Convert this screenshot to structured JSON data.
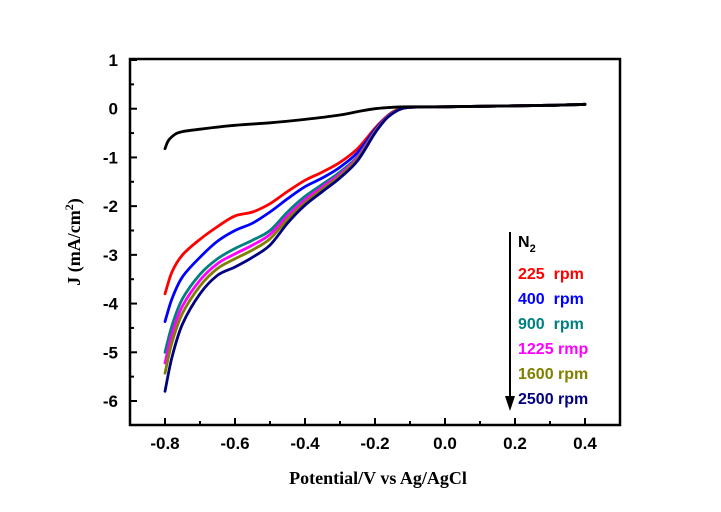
{
  "chart_data": {
    "type": "line",
    "title": "",
    "xlabel": "Potential/V vs Ag/AgCl",
    "ylabel_main": "J (mA/cm",
    "ylabel_sup": "2",
    "ylabel_close": ")",
    "xlim": [
      -0.9,
      0.5
    ],
    "ylim": [
      -6.5,
      1
    ],
    "xticks": [
      -0.8,
      -0.6,
      -0.4,
      -0.2,
      0.0,
      0.2,
      0.4
    ],
    "xtick_labels": [
      "-0.8",
      "-0.6",
      "-0.4",
      "-0.2",
      "0.0",
      "0.2",
      "0.4"
    ],
    "yticks": [
      1,
      0,
      -1,
      -2,
      -3,
      -4,
      -5,
      -6
    ],
    "ytick_labels": [
      "1",
      "0",
      "-1",
      "-2",
      "-3",
      "-4",
      "-5",
      "-6"
    ],
    "grid": false,
    "legend_placement": "bottom-right",
    "legend_arrow": "down",
    "series": [
      {
        "name": "N2",
        "label_main": "N",
        "label_sub": "2",
        "color": "#000000",
        "x": [
          -0.8,
          -0.79,
          -0.77,
          -0.75,
          -0.7,
          -0.6,
          -0.5,
          -0.4,
          -0.3,
          -0.25,
          -0.2,
          -0.15,
          -0.1,
          0.0,
          0.1,
          0.2,
          0.3,
          0.4
        ],
        "y": [
          -0.82,
          -0.65,
          -0.52,
          -0.47,
          -0.42,
          -0.34,
          -0.29,
          -0.22,
          -0.13,
          -0.06,
          0.0,
          0.03,
          0.04,
          0.04,
          0.05,
          0.06,
          0.07,
          0.09
        ]
      },
      {
        "name": "225 rpm",
        "color": "#ff0000",
        "x": [
          -0.8,
          -0.78,
          -0.75,
          -0.7,
          -0.65,
          -0.6,
          -0.55,
          -0.5,
          -0.45,
          -0.4,
          -0.35,
          -0.3,
          -0.25,
          -0.2,
          -0.17,
          -0.15,
          -0.13,
          -0.1,
          0.0,
          0.1,
          0.2,
          0.3,
          0.4
        ],
        "y": [
          -3.8,
          -3.35,
          -3.0,
          -2.68,
          -2.42,
          -2.2,
          -2.12,
          -1.95,
          -1.7,
          -1.47,
          -1.3,
          -1.1,
          -0.82,
          -0.4,
          -0.18,
          -0.07,
          0.0,
          0.03,
          0.04,
          0.05,
          0.06,
          0.07,
          0.09
        ]
      },
      {
        "name": "400 rpm",
        "color": "#0000ff",
        "x": [
          -0.8,
          -0.78,
          -0.75,
          -0.7,
          -0.65,
          -0.6,
          -0.55,
          -0.5,
          -0.45,
          -0.4,
          -0.35,
          -0.3,
          -0.25,
          -0.2,
          -0.17,
          -0.15,
          -0.13,
          -0.1,
          0.0,
          0.1,
          0.2,
          0.3,
          0.4
        ],
        "y": [
          -4.37,
          -3.9,
          -3.45,
          -3.05,
          -2.72,
          -2.5,
          -2.35,
          -2.12,
          -1.85,
          -1.6,
          -1.42,
          -1.2,
          -0.9,
          -0.43,
          -0.19,
          -0.08,
          -0.01,
          0.03,
          0.04,
          0.05,
          0.06,
          0.07,
          0.09
        ]
      },
      {
        "name": "900 rpm",
        "color": "#008080",
        "x": [
          -0.8,
          -0.78,
          -0.75,
          -0.7,
          -0.65,
          -0.6,
          -0.55,
          -0.5,
          -0.45,
          -0.4,
          -0.35,
          -0.3,
          -0.25,
          -0.2,
          -0.17,
          -0.15,
          -0.13,
          -0.1,
          0.0,
          0.1,
          0.2,
          0.3,
          0.4
        ],
        "y": [
          -5.0,
          -4.45,
          -3.9,
          -3.4,
          -3.08,
          -2.87,
          -2.7,
          -2.5,
          -2.12,
          -1.8,
          -1.55,
          -1.3,
          -0.98,
          -0.46,
          -0.2,
          -0.09,
          -0.01,
          0.03,
          0.04,
          0.05,
          0.06,
          0.07,
          0.09
        ]
      },
      {
        "name": "1225 rmp",
        "color": "#ff00ff",
        "x": [
          -0.8,
          -0.78,
          -0.75,
          -0.7,
          -0.65,
          -0.6,
          -0.55,
          -0.5,
          -0.45,
          -0.4,
          -0.35,
          -0.3,
          -0.25,
          -0.2,
          -0.17,
          -0.15,
          -0.13,
          -0.1,
          0.0,
          0.1,
          0.2,
          0.3,
          0.4
        ],
        "y": [
          -5.22,
          -4.62,
          -4.05,
          -3.52,
          -3.18,
          -2.98,
          -2.8,
          -2.58,
          -2.2,
          -1.87,
          -1.6,
          -1.34,
          -1.0,
          -0.47,
          -0.2,
          -0.09,
          -0.01,
          0.03,
          0.04,
          0.05,
          0.06,
          0.07,
          0.09
        ]
      },
      {
        "name": "1600 rpm",
        "color": "#808000",
        "x": [
          -0.8,
          -0.78,
          -0.75,
          -0.7,
          -0.65,
          -0.6,
          -0.55,
          -0.5,
          -0.45,
          -0.4,
          -0.35,
          -0.3,
          -0.25,
          -0.2,
          -0.17,
          -0.15,
          -0.13,
          -0.1,
          0.0,
          0.1,
          0.2,
          0.3,
          0.4
        ],
        "y": [
          -5.43,
          -4.8,
          -4.2,
          -3.64,
          -3.28,
          -3.08,
          -2.9,
          -2.67,
          -2.27,
          -1.93,
          -1.65,
          -1.38,
          -1.03,
          -0.48,
          -0.21,
          -0.09,
          -0.01,
          0.03,
          0.04,
          0.05,
          0.06,
          0.07,
          0.09
        ]
      },
      {
        "name": "2500 rpm",
        "color": "#000080",
        "x": [
          -0.8,
          -0.78,
          -0.75,
          -0.7,
          -0.65,
          -0.6,
          -0.55,
          -0.5,
          -0.45,
          -0.4,
          -0.35,
          -0.3,
          -0.25,
          -0.2,
          -0.17,
          -0.15,
          -0.13,
          -0.1,
          0.0,
          0.1,
          0.2,
          0.3,
          0.4
        ],
        "y": [
          -5.8,
          -5.1,
          -4.42,
          -3.8,
          -3.42,
          -3.25,
          -3.05,
          -2.8,
          -2.35,
          -1.98,
          -1.7,
          -1.42,
          -1.07,
          -0.5,
          -0.22,
          -0.1,
          -0.02,
          0.03,
          0.04,
          0.05,
          0.06,
          0.07,
          0.09
        ]
      }
    ]
  }
}
